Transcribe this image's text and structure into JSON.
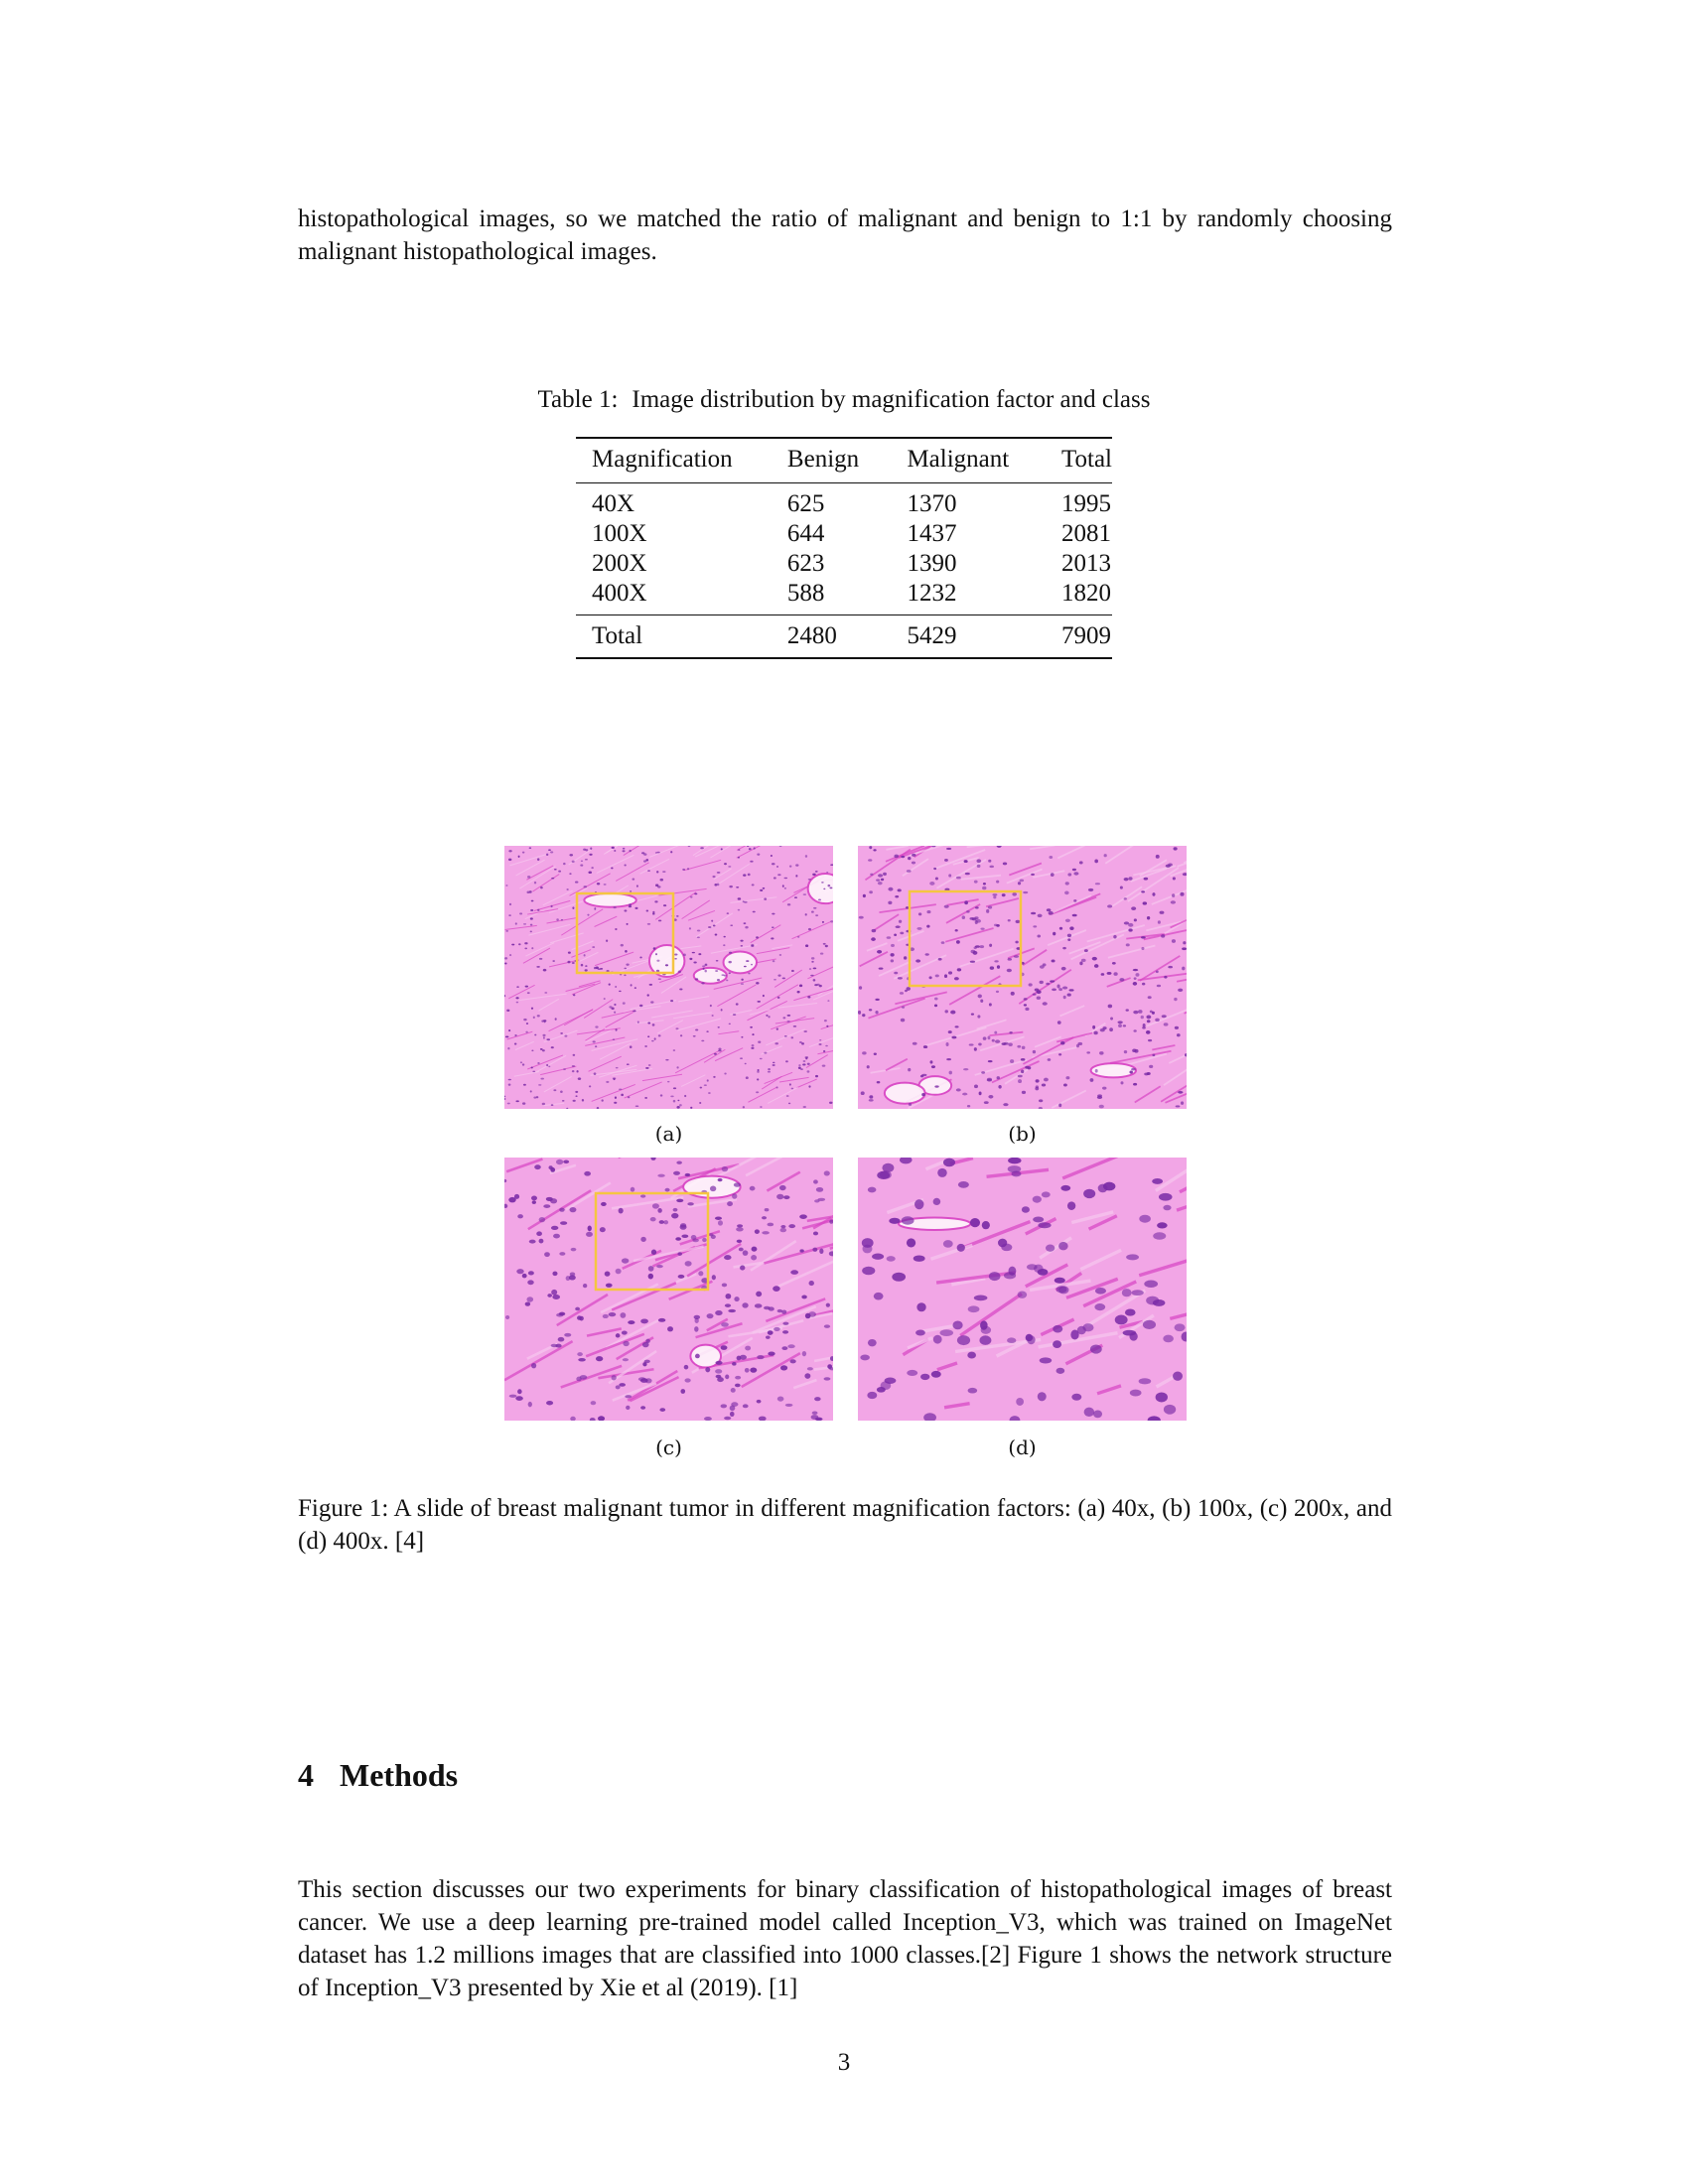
{
  "intro_text": "histopathological images, so we matched the ratio of malignant and benign to 1:1 by randomly choosing malignant histopathological images.",
  "table": {
    "number": "Table 1:",
    "title": "Image distribution by magnification factor and class",
    "headers": [
      "Magnification",
      "Benign",
      "Malignant",
      "Total"
    ],
    "rows": [
      [
        "40X",
        "625",
        "1370",
        "1995"
      ],
      [
        "100X",
        "644",
        "1437",
        "2081"
      ],
      [
        "200X",
        "623",
        "1390",
        "2013"
      ],
      [
        "400X",
        "588",
        "1232",
        "1820"
      ]
    ],
    "total_row": [
      "Total",
      "2480",
      "5429",
      "7909"
    ]
  },
  "figure": {
    "panels": [
      {
        "label": "(a)"
      },
      {
        "label": "(b)"
      },
      {
        "label": "(c)"
      },
      {
        "label": "(d)"
      }
    ],
    "caption": "Figure 1: A slide of breast malignant tumor in different magnification factors: (a) 40x, (b) 100x, (c) 200x, and (d) 400x. [4]",
    "tissue_colors": {
      "background": "#f2a6e6",
      "stain": "#d844c4",
      "nuclei": "#7a2aa6",
      "highlight_box": "#f5c542"
    }
  },
  "section": {
    "number": "4",
    "title": "Methods"
  },
  "methods_text": "This section discusses our two experiments for binary classification of histopathological images of breast cancer. We use a deep learning pre-trained model called Inception_V3, which was trained on ImageNet dataset has 1.2 millions images that are classified into 1000 classes.[2] Figure 1 shows the network structure of Inception_V3 presented by Xie et al (2019). [1]",
  "page_number": "3"
}
